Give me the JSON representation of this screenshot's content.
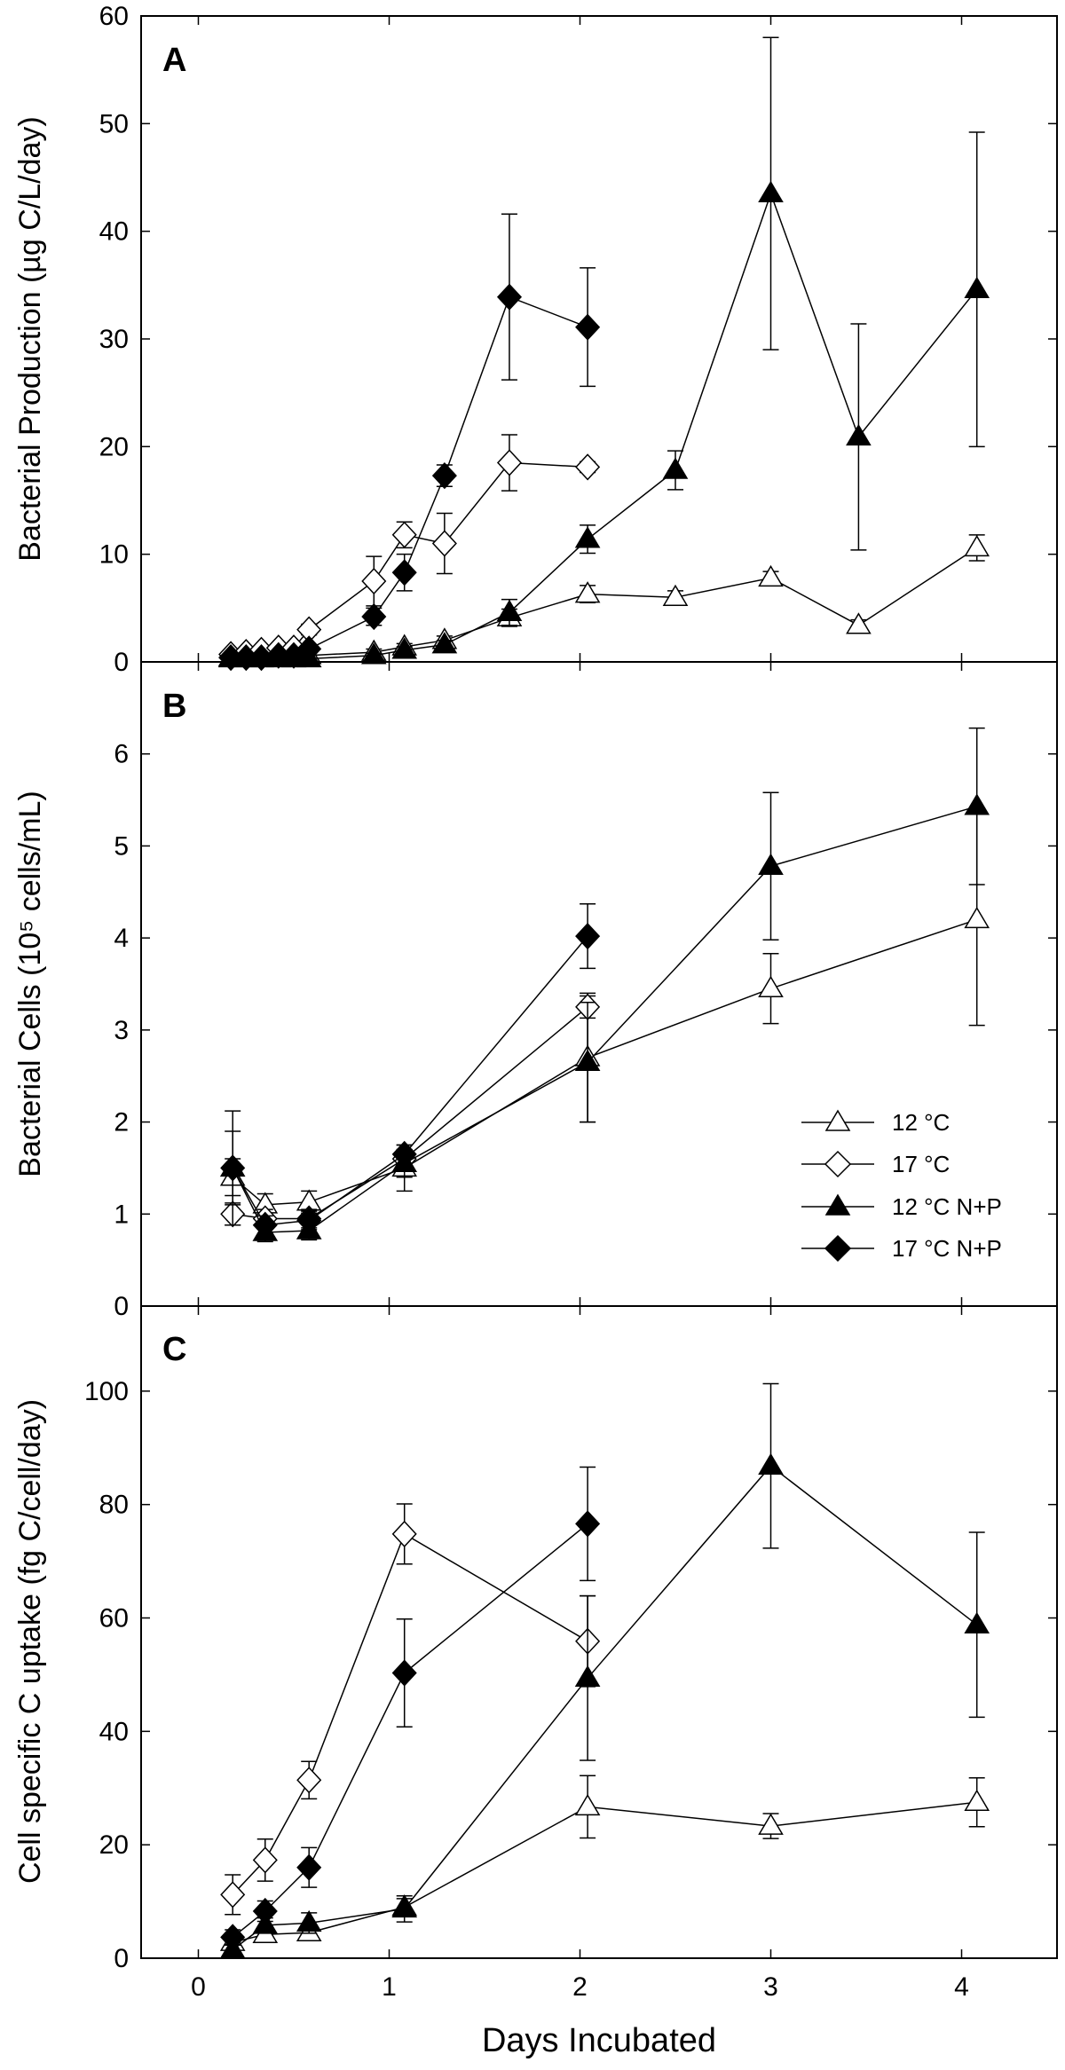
{
  "chart_data": [
    {
      "type": "line",
      "panel_label": "A",
      "title": "",
      "xlabel": "Days Incubated",
      "ylabel": "Bacterial Production (µg C/L/day)",
      "xlim": [
        -0.3,
        4.5
      ],
      "ylim": [
        0,
        60
      ],
      "xticks": [
        0,
        1,
        2,
        3,
        4
      ],
      "yticks": [
        0,
        10,
        20,
        30,
        40,
        50,
        60
      ],
      "series": [
        {
          "name": "12 °C",
          "marker": "triangle",
          "filled": false,
          "x": [
            0.17,
            0.25,
            0.33,
            0.42,
            0.5,
            0.58,
            0.92,
            1.08,
            1.29,
            1.63,
            2.04,
            2.5,
            3.0,
            3.46,
            4.08
          ],
          "y": [
            0.4,
            0.4,
            0.5,
            0.5,
            0.5,
            0.6,
            0.9,
            1.4,
            2.0,
            4.1,
            6.3,
            6.0,
            7.8,
            3.4,
            10.6
          ],
          "err": [
            0,
            0,
            0,
            0,
            0,
            0,
            0.3,
            0.3,
            0.4,
            0.8,
            0.8,
            0.6,
            0.6,
            0.5,
            1.2
          ]
        },
        {
          "name": "17 °C",
          "marker": "diamond",
          "filled": false,
          "x": [
            0.17,
            0.25,
            0.33,
            0.42,
            0.5,
            0.58,
            0.92,
            1.08,
            1.29,
            1.63,
            2.04
          ],
          "y": [
            0.7,
            0.9,
            1.1,
            1.3,
            1.3,
            3.0,
            7.5,
            11.8,
            11.0,
            18.5,
            18.1
          ],
          "err": [
            0.2,
            0.2,
            0.2,
            0.3,
            0.3,
            0.5,
            2.3,
            1.2,
            2.8,
            2.6,
            0.5
          ]
        },
        {
          "name": "12 °C N+P",
          "marker": "triangle",
          "filled": true,
          "x": [
            0.17,
            0.25,
            0.33,
            0.42,
            0.5,
            0.58,
            0.92,
            1.08,
            1.29,
            1.63,
            2.04,
            2.5,
            3.0,
            3.46,
            4.08
          ],
          "y": [
            0.3,
            0.3,
            0.3,
            0.3,
            0.3,
            0.3,
            0.6,
            1.1,
            1.6,
            4.6,
            11.4,
            17.8,
            43.5,
            20.9,
            34.6
          ],
          "err": [
            0,
            0,
            0,
            0,
            0,
            0,
            0.2,
            0.3,
            0.4,
            1.2,
            1.3,
            1.8,
            14.5,
            10.5,
            14.6
          ]
        },
        {
          "name": "17 °C N+P",
          "marker": "diamond",
          "filled": true,
          "x": [
            0.17,
            0.25,
            0.33,
            0.42,
            0.5,
            0.58,
            0.92,
            1.08,
            1.29,
            1.63,
            2.04
          ],
          "y": [
            0.4,
            0.4,
            0.4,
            0.6,
            0.6,
            1.2,
            4.2,
            8.3,
            17.3,
            33.9,
            31.1
          ],
          "err": [
            0.1,
            0.1,
            0.1,
            0.2,
            0.2,
            0.3,
            0.8,
            1.7,
            1.0,
            7.7,
            5.5
          ]
        }
      ]
    },
    {
      "type": "line",
      "panel_label": "B",
      "title": "",
      "xlabel": "Days Incubated",
      "ylabel": "Bacterial Cells (10⁵ cells/mL)",
      "xlim": [
        -0.3,
        4.5
      ],
      "ylim": [
        0,
        7
      ],
      "xticks": [
        0,
        1,
        2,
        3,
        4
      ],
      "yticks": [
        0,
        1,
        2,
        3,
        4,
        5,
        6
      ],
      "series": [
        {
          "name": "12 °C",
          "marker": "triangle",
          "filled": false,
          "x": [
            0.18,
            0.35,
            0.58,
            1.08,
            2.04,
            3.0,
            4.08
          ],
          "y": [
            1.4,
            1.1,
            1.13,
            1.5,
            2.7,
            3.45,
            4.2
          ],
          "err": [
            0.2,
            0.12,
            0.12,
            0.25,
            0.7,
            0.38,
            1.15
          ]
        },
        {
          "name": "17 °C",
          "marker": "diamond",
          "filled": false,
          "x": [
            0.18,
            0.35,
            0.58,
            1.08,
            2.04
          ],
          "y": [
            1.0,
            0.95,
            0.95,
            1.6,
            3.25
          ],
          "err": [
            0.12,
            0.1,
            0.1,
            0.1,
            0.12
          ]
        },
        {
          "name": "12 °C N+P",
          "marker": "triangle",
          "filled": true,
          "x": [
            0.18,
            0.35,
            0.58,
            1.08,
            2.04,
            3.0,
            4.08
          ],
          "y": [
            1.5,
            0.8,
            0.82,
            1.55,
            2.65,
            4.78,
            5.43
          ],
          "err": [
            0.4,
            0.1,
            0.1,
            0.15,
            0.65,
            0.8,
            0.85
          ]
        },
        {
          "name": "17 °C N+P",
          "marker": "diamond",
          "filled": true,
          "x": [
            0.18,
            0.35,
            0.58,
            1.08,
            2.04
          ],
          "y": [
            1.5,
            0.88,
            0.93,
            1.65,
            4.02
          ],
          "err": [
            0.62,
            0.1,
            0.1,
            0.1,
            0.35
          ]
        }
      ]
    },
    {
      "type": "line",
      "panel_label": "C",
      "title": "",
      "xlabel": "Days Incubated",
      "ylabel": "Cell specific C uptake (fg C/cell/day)",
      "xlim": [
        -0.3,
        4.5
      ],
      "ylim": [
        0,
        115
      ],
      "xticks": [
        0,
        1,
        2,
        3,
        4
      ],
      "yticks": [
        0,
        20,
        40,
        60,
        80,
        100
      ],
      "series": [
        {
          "name": "12 °C",
          "marker": "triangle",
          "filled": false,
          "x": [
            0.18,
            0.35,
            0.58,
            1.08,
            2.04,
            3.0,
            4.08
          ],
          "y": [
            2.8,
            4.2,
            4.5,
            9.0,
            26.7,
            23.3,
            27.5
          ],
          "err": [
            0.5,
            0.6,
            0.6,
            1.5,
            5.5,
            2.2,
            4.3
          ]
        },
        {
          "name": "17 °C",
          "marker": "diamond",
          "filled": false,
          "x": [
            0.18,
            0.35,
            0.58,
            1.08,
            2.04
          ],
          "y": [
            11.2,
            17.3,
            31.4,
            74.8,
            55.9
          ],
          "err": [
            3.5,
            3.7,
            3.3,
            5.3,
            8.0
          ]
        },
        {
          "name": "12 °C N+P",
          "marker": "triangle",
          "filled": true,
          "x": [
            0.18,
            0.35,
            0.58,
            1.08,
            2.04,
            3.0,
            4.08
          ],
          "y": [
            1.5,
            5.8,
            6.2,
            8.7,
            49.4,
            86.8,
            58.8
          ],
          "err": [
            0.8,
            1.3,
            1.8,
            2.3,
            14.5,
            14.5,
            16.3
          ]
        },
        {
          "name": "17 °C N+P",
          "marker": "diamond",
          "filled": true,
          "x": [
            0.18,
            0.35,
            0.58,
            1.08,
            2.04
          ],
          "y": [
            3.7,
            8.3,
            16.0,
            50.3,
            76.6
          ],
          "err": [
            1.3,
            1.8,
            3.5,
            9.5,
            10.0
          ]
        }
      ]
    }
  ],
  "legend": {
    "entries": [
      {
        "label": "12 °C"
      },
      {
        "label": "17 °C"
      },
      {
        "label": "12 °C N+P"
      },
      {
        "label": "17 °C N+P"
      }
    ]
  },
  "colors": {
    "ink": "#000000",
    "open_fill": "#ffffff",
    "filled_fill": "#000000"
  }
}
